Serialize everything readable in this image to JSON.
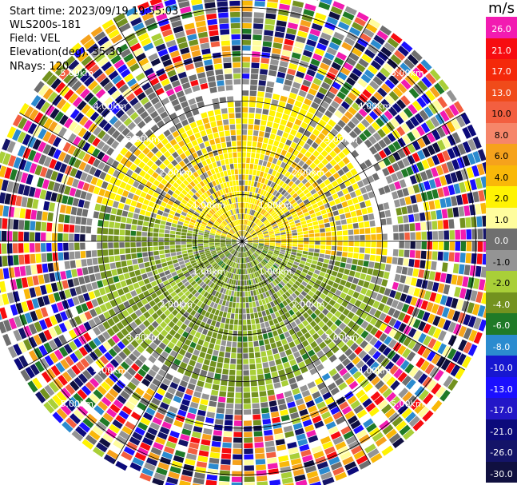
{
  "header": {
    "start_time": "Start time: 2023/09/19 19:55:03",
    "instrument": "WLS200s-181",
    "field": "Field: VEL",
    "elevation": "Elevation(deg): 35.30",
    "nrays": "NRays: 120"
  },
  "colorbar": {
    "unit": "m/s",
    "levels": [
      {
        "label": "26.0",
        "color": "#f21bb1"
      },
      {
        "label": "21.0",
        "color": "#f70c10"
      },
      {
        "label": "17.0",
        "color": "#f4290a"
      },
      {
        "label": "13.0",
        "color": "#f04b1a"
      },
      {
        "label": "10.0",
        "color": "#f35f40"
      },
      {
        "label": "8.0",
        "color": "#f6866a"
      },
      {
        "label": "6.0",
        "color": "#f6a21c"
      },
      {
        "label": "4.0",
        "color": "#f9b809"
      },
      {
        "label": "2.0",
        "color": "#fff303"
      },
      {
        "label": "1.0",
        "color": "#fffd9e"
      },
      {
        "label": "0.0",
        "color": "#6f6f6f"
      },
      {
        "label": "-1.0",
        "color": "#949494"
      },
      {
        "label": "-2.0",
        "color": "#a9cf38"
      },
      {
        "label": "-4.0",
        "color": "#73921f"
      },
      {
        "label": "-6.0",
        "color": "#1f7a27"
      },
      {
        "label": "-8.0",
        "color": "#2b8bcf"
      },
      {
        "label": "-10.0",
        "color": "#1717d0"
      },
      {
        "label": "-13.0",
        "color": "#1b10ff"
      },
      {
        "label": "-17.0",
        "color": "#2316c7"
      },
      {
        "label": "-21.0",
        "color": "#0c0a7b"
      },
      {
        "label": "-26.0",
        "color": "#141468"
      },
      {
        "label": "-30.0",
        "color": "#101040"
      }
    ]
  },
  "chart_data": {
    "type": "heatmap",
    "projection": "polar",
    "field": "VEL",
    "units": "m/s",
    "nrays": 120,
    "max_range_km": 5.5,
    "range_ring_labels": [
      "1.00km",
      "2.00km",
      "3.00km",
      "4.00km",
      "5.00km"
    ],
    "label_azimuths_deg": [
      315,
      45,
      135,
      225
    ],
    "regions": [
      {
        "range_km": [
          0,
          3.2
        ],
        "azimuth_deg": [
          -75,
          100
        ],
        "velocity": "2.0 to 4.0",
        "color_group": "yellow"
      },
      {
        "range_km": [
          0,
          3.3
        ],
        "azimuth_deg": [
          100,
          285
        ],
        "velocity": "-4.0 to -1.0",
        "color_group": "green"
      },
      {
        "range_km": [
          3.3,
          5.5
        ],
        "azimuth_deg": [
          0,
          360
        ],
        "velocity": "noise",
        "color_group": "mixed"
      }
    ],
    "grid": true
  }
}
